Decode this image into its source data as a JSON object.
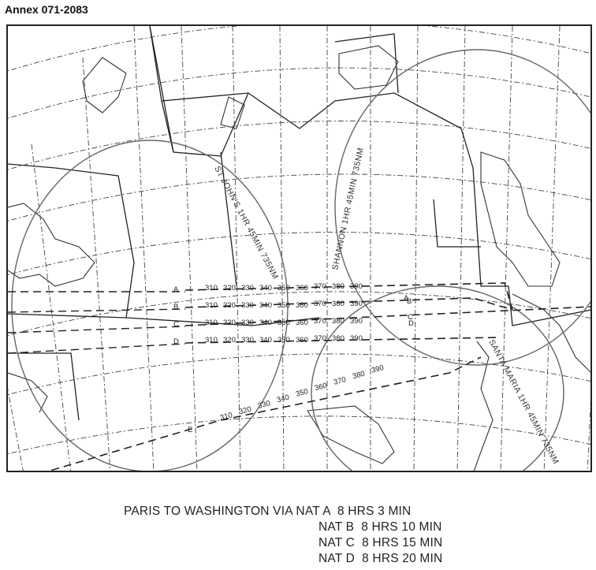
{
  "annex_title": "Annex 071-2083",
  "map": {
    "circle_labels": {
      "st_johns": "ST JOHN'S 1HR 45MIN 735NM",
      "shannon": "SHANNON 1HR 45MIN 735NM",
      "santa_maria": "SANTA MARIA 1HR 45MIN 735NM"
    },
    "tracks": [
      {
        "letter": "A",
        "east_letter": "A",
        "levels": [
          "310",
          "320",
          "330",
          "340",
          "350",
          "360",
          "370",
          "380",
          "390"
        ]
      },
      {
        "letter": "B",
        "east_letter": "B",
        "levels": [
          "310",
          "320",
          "330",
          "340",
          "350",
          "360",
          "370",
          "380",
          "390"
        ]
      },
      {
        "letter": "C",
        "east_letter": "C",
        "levels": [
          "310",
          "320",
          "330",
          "340",
          "350",
          "360",
          "370",
          "380",
          "390"
        ]
      },
      {
        "letter": "D",
        "east_letter": "D",
        "levels": [
          "310",
          "320",
          "330",
          "340",
          "350",
          "360",
          "370",
          "380",
          "390"
        ]
      },
      {
        "letter": "E",
        "east_letter": "",
        "levels": [
          "310",
          "320",
          "330",
          "340",
          "350",
          "360",
          "370",
          "380",
          "390"
        ]
      }
    ]
  },
  "legend": {
    "prefix": "PARIS TO WASHINGTON VIA",
    "rows": [
      {
        "track": "NAT A",
        "time": "8 HRS 3 MIN"
      },
      {
        "track": "NAT B",
        "time": "8 HRS 10 MIN"
      },
      {
        "track": "NAT C",
        "time": "8 HRS 15 MIN"
      },
      {
        "track": "NAT D",
        "time": "8 HRS 20 MIN"
      }
    ]
  }
}
